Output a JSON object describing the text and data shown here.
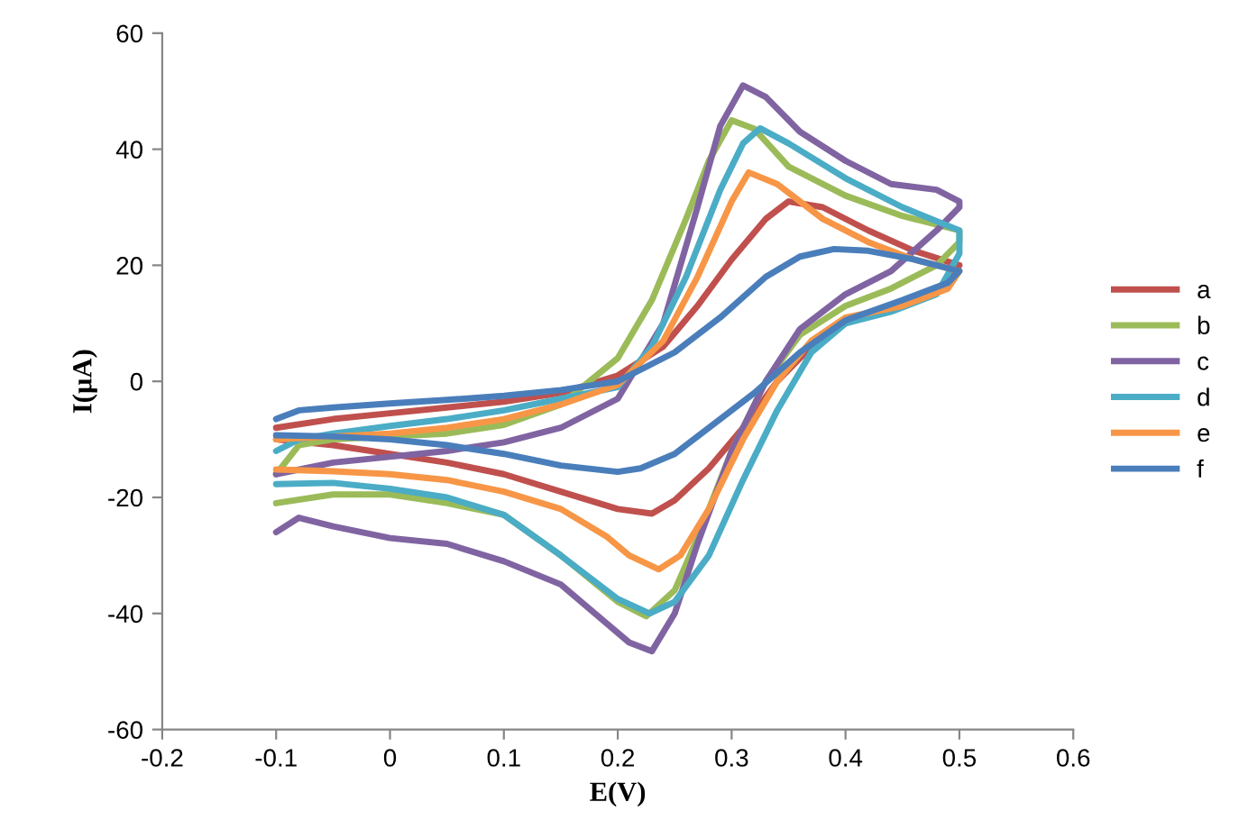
{
  "chart_data": {
    "type": "line",
    "xlabel": "E(V)",
    "ylabel": "I(µA)",
    "xlim": [
      -0.2,
      0.6
    ],
    "xticks": [
      -0.2,
      -0.1,
      0,
      0.1,
      0.2,
      0.3,
      0.4,
      0.5,
      0.6
    ],
    "ylim": [
      -60,
      60
    ],
    "yticks": [
      -60,
      -40,
      -20,
      0,
      20,
      40,
      60
    ],
    "grid": false,
    "legend": "right",
    "marker": "none",
    "line_style": "solid",
    "series": [
      {
        "name": "a",
        "color": "#c0504d",
        "x": [
          -0.1,
          -0.05,
          0,
          0.05,
          0.1,
          0.15,
          0.2,
          0.24,
          0.27,
          0.3,
          0.33,
          0.35,
          0.38,
          0.42,
          0.46,
          0.5,
          0.49,
          0.45,
          0.4,
          0.37,
          0.34,
          0.31,
          0.28,
          0.25,
          0.23,
          0.2,
          0.15,
          0.1,
          0.05,
          0,
          -0.05,
          -0.1
        ],
        "values": [
          -8,
          -6.5,
          -5.5,
          -4.5,
          -3.5,
          -2,
          1,
          6,
          13,
          21,
          28,
          31,
          30,
          26,
          22.5,
          20,
          17,
          13,
          10,
          6,
          0,
          -8,
          -15,
          -20.5,
          -22.8,
          -22,
          -19,
          -16,
          -14,
          -12.5,
          -11,
          -10
        ]
      },
      {
        "name": "b",
        "color": "#9bbb59",
        "x": [
          -0.1,
          -0.08,
          -0.05,
          0,
          0.05,
          0.1,
          0.15,
          0.2,
          0.23,
          0.26,
          0.28,
          0.3,
          0.32,
          0.35,
          0.4,
          0.45,
          0.5,
          0.5,
          0.48,
          0.44,
          0.4,
          0.36,
          0.33,
          0.3,
          0.27,
          0.25,
          0.225,
          0.2,
          0.15,
          0.1,
          0.05,
          0,
          -0.05,
          -0.1
        ],
        "values": [
          -16,
          -11,
          -10,
          -9.5,
          -9,
          -7.5,
          -4,
          4,
          14,
          28,
          38,
          45,
          43.5,
          37,
          32,
          28.5,
          26,
          24,
          20,
          16,
          13,
          8,
          0,
          -12,
          -27,
          -36,
          -40.5,
          -38,
          -30,
          -23,
          -21,
          -19.5,
          -19.5,
          -21
        ]
      },
      {
        "name": "c",
        "color": "#8064a2",
        "x": [
          -0.1,
          -0.05,
          0,
          0.05,
          0.1,
          0.15,
          0.2,
          0.24,
          0.27,
          0.29,
          0.31,
          0.33,
          0.36,
          0.4,
          0.44,
          0.48,
          0.5,
          0.5,
          0.48,
          0.44,
          0.4,
          0.36,
          0.33,
          0.3,
          0.27,
          0.25,
          0.23,
          0.21,
          0.18,
          0.15,
          0.1,
          0.05,
          0,
          -0.05,
          -0.08,
          -0.1
        ],
        "values": [
          -16,
          -14,
          -13,
          -12,
          -10.5,
          -8,
          -3,
          10,
          30,
          44,
          51,
          49,
          43,
          38,
          34,
          33,
          31,
          30,
          26,
          19,
          15,
          9,
          0,
          -12,
          -28,
          -40,
          -46.5,
          -45,
          -40,
          -35,
          -31,
          -28,
          -27,
          -25,
          -23.5,
          -26
        ]
      },
      {
        "name": "d",
        "color": "#4bacc6",
        "x": [
          -0.1,
          -0.08,
          -0.05,
          0,
          0.05,
          0.1,
          0.15,
          0.2,
          0.23,
          0.26,
          0.29,
          0.31,
          0.325,
          0.35,
          0.4,
          0.45,
          0.5,
          0.5,
          0.48,
          0.44,
          0.4,
          0.37,
          0.34,
          0.31,
          0.28,
          0.25,
          0.228,
          0.2,
          0.15,
          0.1,
          0.05,
          0,
          -0.05,
          -0.1
        ],
        "values": [
          -12,
          -10,
          -9,
          -7.7,
          -6.5,
          -5,
          -3,
          -1,
          6,
          18,
          33,
          41,
          43.6,
          41,
          35,
          30,
          26,
          22,
          15,
          12,
          10,
          5,
          -5,
          -17,
          -30,
          -38,
          -40,
          -37.5,
          -30,
          -23,
          -20,
          -18.5,
          -17.5,
          -17.7
        ]
      },
      {
        "name": "e",
        "color": "#f79646",
        "x": [
          -0.1,
          -0.05,
          0,
          0.05,
          0.1,
          0.15,
          0.2,
          0.24,
          0.27,
          0.3,
          0.315,
          0.34,
          0.38,
          0.42,
          0.46,
          0.5,
          0.49,
          0.45,
          0.4,
          0.37,
          0.34,
          0.31,
          0.28,
          0.255,
          0.236,
          0.21,
          0.19,
          0.15,
          0.1,
          0.05,
          0,
          -0.05,
          -0.1
        ],
        "values": [
          -10,
          -9.5,
          -9,
          -8,
          -6.5,
          -4,
          -0.6,
          7,
          18,
          31,
          36,
          34,
          28,
          24,
          21,
          19,
          16,
          13,
          11,
          7,
          0,
          -10,
          -22,
          -30,
          -32.4,
          -30,
          -26.7,
          -22,
          -19,
          -17,
          -16,
          -15.5,
          -15.2
        ]
      },
      {
        "name": "f",
        "color": "#4a7ebb",
        "x": [
          -0.1,
          -0.08,
          -0.05,
          0,
          0.05,
          0.1,
          0.15,
          0.2,
          0.25,
          0.29,
          0.33,
          0.36,
          0.39,
          0.42,
          0.46,
          0.5,
          0.49,
          0.45,
          0.4,
          0.36,
          0.32,
          0.28,
          0.25,
          0.22,
          0.2,
          0.15,
          0.1,
          0.05,
          0,
          -0.05,
          -0.1
        ],
        "values": [
          -6.5,
          -5,
          -4.5,
          -3.8,
          -3.2,
          -2.5,
          -1.5,
          0,
          5,
          11,
          18,
          21.5,
          22.8,
          22.5,
          21,
          19,
          17,
          14,
          10.5,
          5,
          -2,
          -8,
          -12.5,
          -15,
          -15.6,
          -14.5,
          -12.5,
          -11,
          -10,
          -9.5,
          -9.3
        ]
      }
    ]
  }
}
